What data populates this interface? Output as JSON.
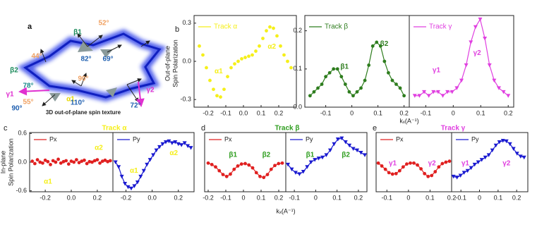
{
  "panel_a": {
    "labels": [
      "a",
      "52°",
      "β1",
      "44°",
      "82°",
      "69°",
      "β2",
      "90°",
      "α1",
      "78°",
      "γ1",
      "55°",
      "90°",
      "110°",
      "72°",
      "γ2",
      "3D out-of-plane spin texture"
    ]
  },
  "figure": {
    "b_ylabel": [
      "Out-of-plane",
      "Spin Polarization"
    ],
    "b_xlabel": "kₓ(A⁻¹)",
    "cde_ylabel": [
      "In-plane",
      "Spin Polarization"
    ],
    "cde_xlabel": "kₓ(A⁻¹)"
  },
  "chart_data": [
    {
      "type": "scatter",
      "panel": "b",
      "annotations": [
        "α1",
        "α2"
      ],
      "annotation_color": "#f5ef1a",
      "x": [
        -0.25,
        -0.23,
        -0.21,
        -0.19,
        -0.17,
        -0.15,
        -0.13,
        -0.11,
        -0.09,
        -0.07,
        -0.05,
        -0.03,
        -0.01,
        0.01,
        0.03,
        0.05,
        0.07,
        0.09,
        0.11,
        0.13,
        0.15,
        0.17,
        0.19,
        0.21,
        0.23,
        0.25,
        0.27
      ],
      "series": [
        {
          "name": "Track α",
          "color": "#f5ef1a",
          "marker": "circle",
          "line": false,
          "values": [
            0.12,
            0.05,
            -0.05,
            -0.15,
            -0.22,
            -0.27,
            -0.28,
            -0.22,
            -0.12,
            -0.05,
            -0.02,
            0.0,
            0.02,
            0.03,
            0.04,
            0.05,
            0.08,
            0.12,
            0.18,
            0.24,
            0.27,
            0.26,
            0.2,
            0.12,
            0.05,
            0.0,
            -0.05
          ]
        }
      ],
      "xlim": [
        -0.28,
        0.3
      ],
      "ylim": [
        -0.36,
        0.36
      ],
      "xticks": [
        -0.2,
        -0.1,
        {
          "value": 0,
          "label": "0.0"
        },
        0.1,
        0.2
      ],
      "yticks": [
        0.3,
        {
          "value": 0,
          "label": "0.0"
        },
        -0.3
      ]
    },
    {
      "type": "line",
      "annotations": [
        "β1",
        "β2"
      ],
      "annotation_color": "#2e7d1e",
      "x": [
        -0.16,
        -0.145,
        -0.13,
        -0.115,
        -0.1,
        -0.085,
        -0.07,
        -0.055,
        -0.04,
        -0.025,
        -0.01,
        0.005,
        0.02,
        0.035,
        0.05,
        0.065,
        0.08,
        0.095,
        0.11,
        0.125,
        0.14,
        0.155,
        0.17,
        0.185,
        0.2
      ],
      "series": [
        {
          "name": "Track β",
          "color": "#2e7d1e",
          "marker": "circle",
          "line": true,
          "values": [
            0.03,
            0.04,
            0.05,
            0.06,
            0.08,
            0.09,
            0.1,
            0.1,
            0.08,
            0.06,
            0.04,
            0.03,
            0.04,
            0.05,
            0.07,
            0.11,
            0.16,
            0.17,
            0.16,
            0.12,
            0.09,
            0.07,
            0.06,
            0.05,
            0.03
          ]
        }
      ],
      "xlim": [
        -0.18,
        0.22
      ],
      "ylim": [
        0,
        0.24
      ],
      "xticks": [
        -0.1,
        0,
        0.1,
        0.2
      ],
      "yticks": [
        {
          "value": 0,
          "label": "0.0"
        },
        0.1,
        0.2
      ]
    },
    {
      "type": "line",
      "annotations": [
        "γ1",
        "γ2"
      ],
      "annotation_color": "#e040e0",
      "x": [
        -0.14,
        -0.123,
        -0.106,
        -0.089,
        -0.072,
        -0.055,
        -0.038,
        -0.021,
        -0.004,
        0.013,
        0.03,
        0.047,
        0.064,
        0.081,
        0.098,
        0.115,
        0.132,
        0.149,
        0.166,
        0.183,
        0.2
      ],
      "series": [
        {
          "name": "Track γ",
          "color": "#e040e0",
          "marker": "triangle",
          "line": true,
          "values": [
            0.03,
            0.03,
            0.04,
            0.03,
            0.04,
            0.04,
            0.03,
            0.04,
            0.04,
            0.05,
            0.07,
            0.11,
            0.17,
            0.21,
            0.23,
            0.18,
            0.11,
            0.07,
            0.05,
            0.04,
            0.03
          ]
        }
      ],
      "xlim": [
        -0.16,
        0.22
      ],
      "ylim": [
        0,
        0.24
      ],
      "xticks": [
        -0.1,
        0,
        0.1,
        0.2
      ],
      "yticks": []
    },
    {
      "type": "scatter",
      "panel": "c",
      "title": "Track α",
      "title_color": "#f5ef1a",
      "annotations": [
        "α2",
        "α1"
      ],
      "annotation_color": "#f5ef1a",
      "x": [
        -0.3,
        -0.28,
        -0.26,
        -0.24,
        -0.22,
        -0.2,
        -0.18,
        -0.16,
        -0.14,
        -0.12,
        -0.1,
        -0.08,
        -0.06,
        -0.04,
        -0.02,
        0,
        0.02,
        0.04,
        0.06,
        0.08,
        0.1,
        0.12,
        0.14,
        0.16,
        0.18,
        0.2,
        0.22,
        0.24,
        0.26,
        0.28,
        0.3
      ],
      "series": [
        {
          "name": "Px",
          "color": "#e02020",
          "marker": "circle",
          "line": false,
          "values": [
            0.02,
            -0.03,
            0.05,
            0.0,
            -0.02,
            0.04,
            0.01,
            -0.05,
            0.03,
            0.0,
            0.06,
            -0.02,
            0.01,
            0.03,
            -0.04,
            0.02,
            0.0,
            0.05,
            -0.01,
            0.02,
            0.04,
            -0.03,
            0.01,
            0.0,
            0.03,
            0.05,
            -0.02,
            0.02,
            0.04,
            0.01,
            0.03
          ]
        }
      ],
      "xlim": [
        -0.32,
        0.32
      ],
      "ylim": [
        -0.62,
        0.62
      ],
      "xticks": [
        -0.2,
        {
          "value": 0,
          "label": "0.0"
        },
        0.2
      ],
      "yticks": [
        0.6,
        {
          "value": 0,
          "label": "0.0"
        },
        -0.6
      ]
    },
    {
      "type": "line",
      "annotations": [
        "α1",
        "α2"
      ],
      "annotation_color": "#f5ef1a",
      "x": [
        -0.28,
        -0.256,
        -0.232,
        -0.208,
        -0.184,
        -0.16,
        -0.136,
        -0.112,
        -0.088,
        -0.064,
        -0.04,
        -0.016,
        0.008,
        0.032,
        0.056,
        0.08,
        0.104,
        0.128,
        0.152,
        0.176,
        0.2,
        0.224,
        0.248,
        0.272,
        0.296
      ],
      "series": [
        {
          "name": "Py",
          "color": "#1a1ad0",
          "marker": "triangle",
          "line": true,
          "values": [
            0.0,
            -0.1,
            -0.3,
            -0.45,
            -0.52,
            -0.55,
            -0.5,
            -0.42,
            -0.3,
            -0.18,
            -0.05,
            0.05,
            0.15,
            0.25,
            0.32,
            0.38,
            0.42,
            0.44,
            0.4,
            0.42,
            0.38,
            0.36,
            0.4,
            0.34,
            0.3
          ]
        }
      ],
      "xlim": [
        -0.3,
        0.32
      ],
      "ylim": [
        -0.62,
        0.62
      ],
      "xticks": [
        -0.2,
        {
          "value": 0,
          "label": "0.0"
        },
        0.2
      ],
      "yticks": []
    },
    {
      "type": "line",
      "panel": "d",
      "title": "Track β",
      "title_color": "#2e9d1e",
      "annotations": [
        "β1",
        "β2"
      ],
      "annotation_color": "#2e9d1e",
      "x": [
        -0.2,
        -0.179,
        -0.158,
        -0.137,
        -0.116,
        -0.095,
        -0.074,
        -0.053,
        -0.032,
        -0.011,
        0.01,
        0.031,
        0.052,
        0.073,
        0.094,
        0.115,
        0.136,
        0.157,
        0.178,
        0.199,
        0.22
      ],
      "series": [
        {
          "name": "Px",
          "color": "#e02020",
          "marker": "circle",
          "line": true,
          "values": [
            -0.02,
            -0.05,
            -0.1,
            -0.18,
            -0.26,
            -0.3,
            -0.25,
            -0.15,
            -0.08,
            -0.04,
            -0.03,
            -0.06,
            -0.12,
            -0.22,
            -0.3,
            -0.32,
            -0.26,
            -0.15,
            -0.07,
            -0.03,
            -0.02
          ]
        }
      ],
      "xlim": [
        -0.22,
        0.24
      ],
      "ylim": [
        -0.62,
        0.62
      ],
      "xticks": [
        -0.2,
        -0.1,
        0,
        0.1,
        0.2
      ],
      "yticks": []
    },
    {
      "type": "line",
      "annotations": [
        "β1",
        "β2"
      ],
      "annotation_color": "#2e9d1e",
      "x": [
        -0.13,
        -0.112,
        -0.094,
        -0.076,
        -0.058,
        -0.04,
        -0.022,
        -0.004,
        0.014,
        0.032,
        0.05,
        0.068,
        0.086,
        0.104,
        0.122,
        0.14,
        0.158,
        0.176,
        0.194,
        0.212,
        0.23
      ],
      "series": [
        {
          "name": "Py",
          "color": "#1a1ad0",
          "marker": "triangle",
          "line": true,
          "values": [
            -0.05,
            -0.15,
            -0.22,
            -0.25,
            -0.2,
            -0.1,
            0.0,
            0.05,
            0.08,
            0.1,
            0.15,
            0.25,
            0.38,
            0.48,
            0.5,
            0.42,
            0.35,
            0.28,
            0.25,
            0.2,
            0.15
          ]
        }
      ],
      "xlim": [
        -0.14,
        0.24
      ],
      "ylim": [
        -0.62,
        0.62
      ],
      "xticks": [
        -0.1,
        0,
        0.1,
        0.2
      ],
      "yticks": []
    },
    {
      "type": "line",
      "panel": "e",
      "title": "Track γ",
      "title_color": "#e040e0",
      "annotations": [
        "γ1",
        "γ2"
      ],
      "annotation_color": "#e040e0",
      "x": [
        -0.14,
        -0.1235,
        -0.107,
        -0.0905,
        -0.074,
        -0.0575,
        -0.041,
        -0.0245,
        -0.008,
        0.0085,
        0.025,
        0.0415,
        0.058,
        0.0745,
        0.091,
        0.1075,
        0.124,
        0.1405,
        0.157,
        0.1735,
        0.19
      ],
      "series": [
        {
          "name": "Px",
          "color": "#e02020",
          "marker": "circle",
          "line": true,
          "values": [
            -0.02,
            -0.08,
            -0.15,
            -0.22,
            -0.25,
            -0.24,
            -0.18,
            -0.1,
            -0.04,
            -0.02,
            -0.02,
            -0.06,
            -0.14,
            -0.24,
            -0.3,
            -0.28,
            -0.2,
            -0.1,
            -0.03,
            0.0,
            0.02
          ]
        }
      ],
      "xlim": [
        -0.15,
        0.2
      ],
      "ylim": [
        -0.62,
        0.62
      ],
      "xticks": [
        -0.1,
        0,
        0.1,
        0.2
      ],
      "yticks": []
    },
    {
      "type": "line",
      "annotations": [
        "γ1",
        "γ2"
      ],
      "annotation_color": "#e040e0",
      "x": [
        -0.14,
        -0.121,
        -0.102,
        -0.083,
        -0.064,
        -0.045,
        -0.026,
        -0.007,
        0.012,
        0.031,
        0.05,
        0.069,
        0.088,
        0.107,
        0.126,
        0.145,
        0.164,
        0.183,
        0.202,
        0.221,
        0.24
      ],
      "series": [
        {
          "name": "Py",
          "color": "#1a1ad0",
          "marker": "triangle",
          "line": true,
          "values": [
            -0.3,
            -0.32,
            -0.28,
            -0.22,
            -0.18,
            -0.12,
            -0.05,
            0.0,
            0.05,
            0.1,
            0.15,
            0.25,
            0.35,
            0.42,
            0.45,
            0.44,
            0.38,
            0.28,
            0.18,
            0.12,
            0.1
          ]
        }
      ],
      "xlim": [
        -0.15,
        0.26
      ],
      "ylim": [
        -0.62,
        0.62
      ],
      "xticks": [
        -0.1,
        0,
        0.1,
        0.2
      ],
      "yticks": []
    }
  ]
}
